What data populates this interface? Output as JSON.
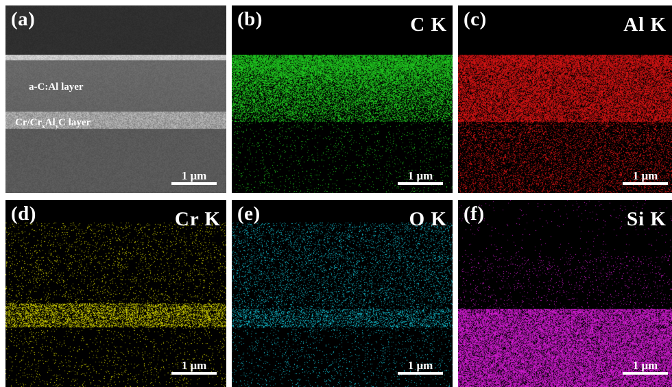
{
  "panels": [
    {
      "id": "a",
      "label": "(a)",
      "element": "",
      "color": "#aaaaaa",
      "layer_label_1": "a-C:Al layer",
      "layer_label_2_prefix": "Cr/Cr",
      "layer_label_2_sub1": "x",
      "layer_label_2_mid": "Al",
      "layer_label_2_sub2": "y",
      "layer_label_2_suffix": "C layer",
      "scale": "1 μm"
    },
    {
      "id": "b",
      "label": "(b)",
      "element": "C K",
      "color": "#22dd22",
      "scale": "1 μm"
    },
    {
      "id": "c",
      "label": "(c)",
      "element": "Al K",
      "color": "#ee1515",
      "scale": "1 μm"
    },
    {
      "id": "d",
      "label": "(d)",
      "element": "Cr K",
      "color": "#e6e600",
      "scale": "1 μm"
    },
    {
      "id": "e",
      "label": "(e)",
      "element": "O K",
      "color": "#14d2e6",
      "scale": "1 μm"
    },
    {
      "id": "f",
      "label": "(f)",
      "element": "Si K",
      "color": "#e61ee6",
      "scale": "1 μm"
    }
  ]
}
